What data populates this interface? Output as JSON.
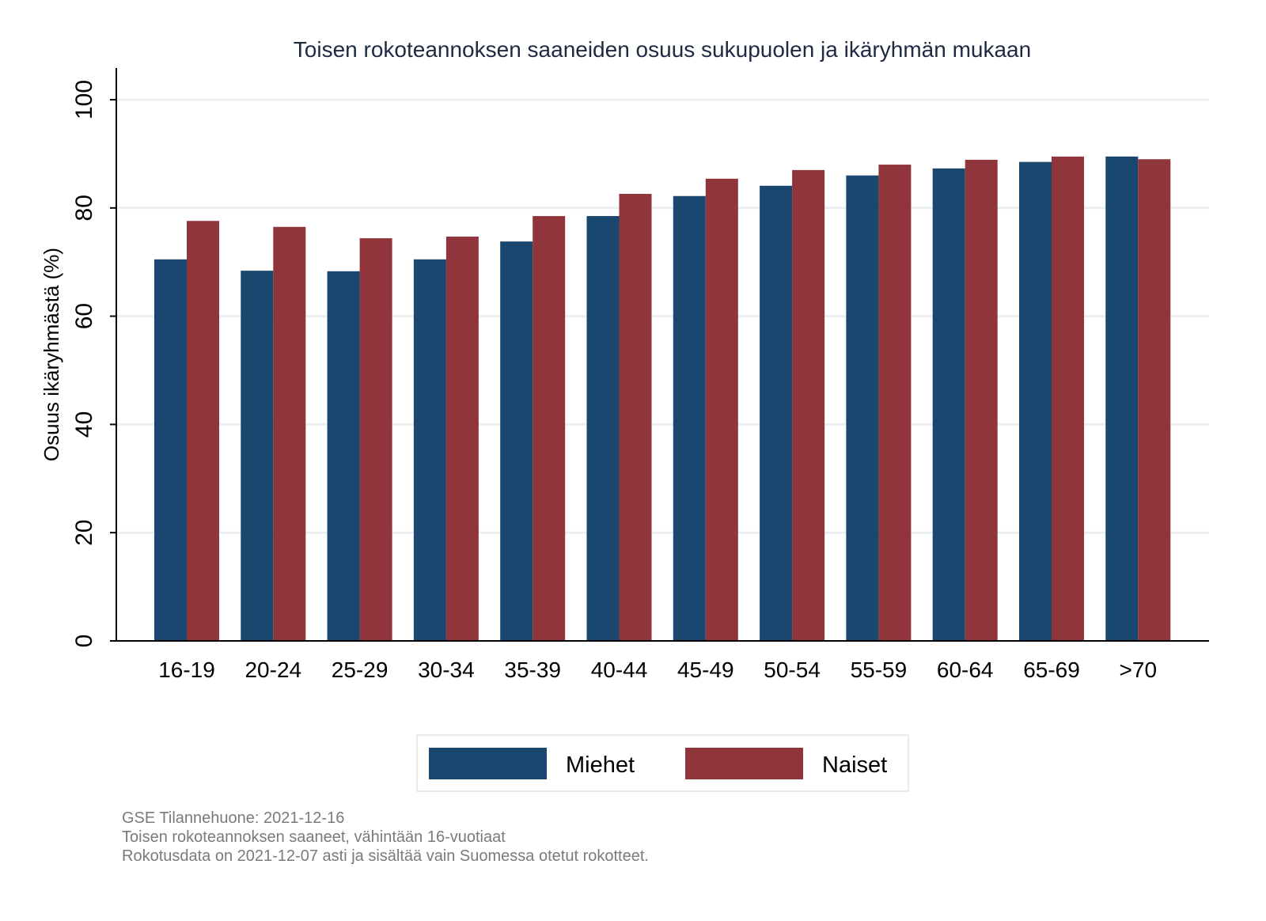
{
  "chart_data": {
    "type": "bar",
    "title": "Toisen rokoteannoksen saaneiden osuus sukupuolen ja ikäryhmän mukaan",
    "xlabel": "",
    "ylabel": "Osuus ikäryhmästä (%)",
    "ylim": [
      0,
      100
    ],
    "yticks": [
      0,
      20,
      40,
      60,
      80,
      100
    ],
    "grid": true,
    "legend_placement": "bottom",
    "categories": [
      "16-19",
      "20-24",
      "25-29",
      "30-34",
      "35-39",
      "40-44",
      "45-49",
      "50-54",
      "55-59",
      "60-64",
      "65-69",
      ">70"
    ],
    "series": [
      {
        "name": "Miehet",
        "color": "#1a476f",
        "values": [
          70.5,
          68.4,
          68.3,
          70.5,
          73.8,
          78.5,
          82.2,
          84.1,
          86.0,
          87.3,
          88.5,
          89.5
        ]
      },
      {
        "name": "Naiset",
        "color": "#90353b",
        "values": [
          77.6,
          76.5,
          74.4,
          74.7,
          78.5,
          82.6,
          85.4,
          87.0,
          88.0,
          88.9,
          89.5,
          89.0
        ]
      }
    ]
  },
  "notes": [
    "GSE Tilannehuone: 2021-12-16",
    "Toisen rokoteannoksen saaneet, vähintään 16-vuotiaat",
    "Rokotusdata on 2021-12-07 asti ja sisältää vain Suomessa otetut rokotteet."
  ]
}
